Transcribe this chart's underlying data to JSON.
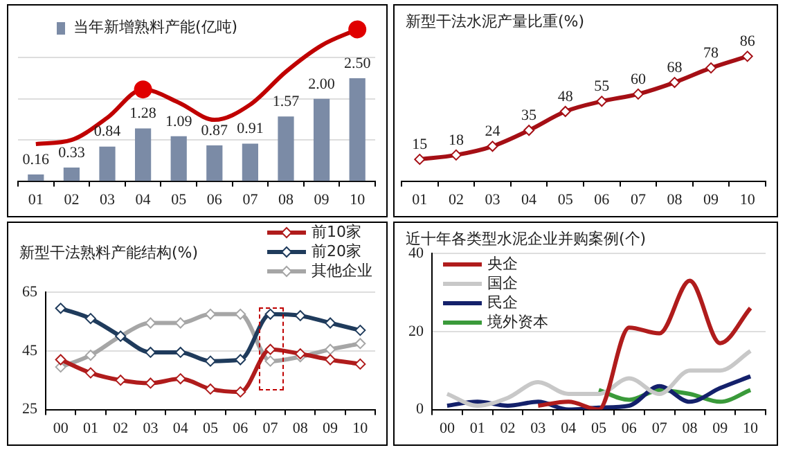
{
  "chart_data": [
    {
      "type": "bar",
      "legend": "top left",
      "tick_labels": "x",
      "grid": "y",
      "categories": [
        "01",
        "02",
        "03",
        "04",
        "05",
        "06",
        "07",
        "08",
        "09",
        "10"
      ],
      "yticks": [
        1,
        2,
        3
      ],
      "series": [
        {
          "name": "当年新增熟料产能(亿吨)",
          "color": "#7b8ba6",
          "values": [
            0.16,
            0.33,
            0.84,
            1.28,
            1.09,
            0.87,
            0.91,
            1.57,
            2.0,
            2.5
          ],
          "value_labels": [
            "0.16",
            "0.33",
            "0.84",
            "1.28",
            "1.09",
            "0.87",
            "0.91",
            "1.57",
            "2.00",
            "2.50"
          ]
        },
        {
          "type": "line",
          "color": "#c00000",
          "values": [
            0.9,
            1.0,
            1.54,
            2.23,
            1.91,
            1.49,
            1.86,
            2.66,
            3.3,
            3.69
          ]
        },
        {
          "type": "scatter",
          "color": "#e00000",
          "marker": "circle",
          "x": [
            "04",
            "10"
          ],
          "values": [
            2.23,
            3.69
          ]
        }
      ]
    },
    {
      "type": "line",
      "title": "新型干法水泥产量比重(%)",
      "tick_labels": "x",
      "marker": "diamond",
      "data_labels": true,
      "categories": [
        "01",
        "02",
        "03",
        "04",
        "05",
        "06",
        "07",
        "08",
        "09",
        "10"
      ],
      "color": "#a50f15",
      "values": [
        15,
        18,
        24,
        35,
        48,
        55,
        60,
        68,
        78,
        86
      ]
    },
    {
      "type": "line",
      "title": "新型干法熟料产能结构(%)",
      "legend": "top right",
      "marker": "diamond",
      "grid": "y",
      "categories": [
        "00",
        "01",
        "02",
        "03",
        "04",
        "05",
        "06",
        "07",
        "08",
        "09",
        "10"
      ],
      "ylim": [
        25,
        65
      ],
      "yticks": [
        25,
        45,
        65
      ],
      "series": [
        {
          "name": "前10家",
          "color": "#b01c1c",
          "values": [
            42,
            37.5,
            35,
            34,
            35.5,
            32,
            31,
            45.5,
            44,
            42,
            40.5
          ]
        },
        {
          "name": "前20家",
          "color": "#1f3b5c",
          "values": [
            59.5,
            56,
            50,
            44.5,
            44.5,
            41.5,
            42,
            57.5,
            57,
            54.5,
            52
          ]
        },
        {
          "name": "其他企业",
          "color": "#a6a6a6",
          "values": [
            39.5,
            43.5,
            50,
            54.5,
            54.5,
            57.5,
            57.5,
            41.5,
            43,
            45.5,
            47.5
          ]
        }
      ]
    },
    {
      "type": "line",
      "title": "近十年各类型水泥企业并购案例(个)",
      "legend": "top left",
      "grid": "y",
      "categories": [
        "00",
        "01",
        "02",
        "03",
        "04",
        "05",
        "06",
        "07",
        "08",
        "09",
        "10"
      ],
      "ylim": [
        0,
        40
      ],
      "yticks": [
        0,
        20,
        40
      ],
      "series": [
        {
          "name": "央企",
          "color": "#b01c1c",
          "values": [
            null,
            null,
            null,
            1,
            2,
            0,
            21,
            19.5,
            33,
            17,
            26
          ]
        },
        {
          "name": "国企",
          "color": "#c8c8c8",
          "values": [
            4,
            1,
            3,
            7,
            4,
            4,
            8,
            4,
            10,
            10,
            15
          ]
        },
        {
          "name": "民企",
          "color": "#14216b",
          "values": [
            1,
            2,
            1,
            2,
            0,
            0.5,
            1,
            6,
            2,
            5.5,
            8.5
          ]
        },
        {
          "name": "境外资本",
          "color": "#3a9a3a",
          "values": [
            null,
            null,
            null,
            null,
            null,
            5,
            2.5,
            5,
            4,
            2,
            5
          ]
        }
      ]
    }
  ]
}
